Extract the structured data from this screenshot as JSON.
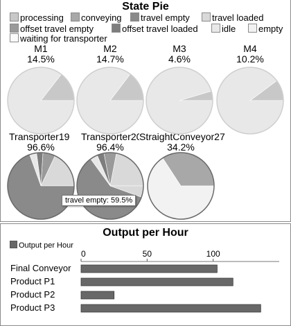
{
  "chart_data": [
    {
      "type": "pie",
      "title": "State Pie",
      "legend": [
        {
          "name": "processing",
          "color": "#c8c8c8"
        },
        {
          "name": "conveying",
          "color": "#a8a8a8"
        },
        {
          "name": "travel empty",
          "color": "#8a8a8a"
        },
        {
          "name": "travel loaded",
          "color": "#d9d9d9"
        },
        {
          "name": "offset travel empty",
          "color": "#9a9a9a"
        },
        {
          "name": "offset travel loaded",
          "color": "#7d7d7d"
        },
        {
          "name": "idle",
          "color": "#e8e8e8"
        },
        {
          "name": "empty",
          "color": "#f2f2f2"
        },
        {
          "name": "waiting for transporter",
          "color": "#fafafa"
        }
      ],
      "pies": [
        {
          "name": "M1",
          "label": "14.5%",
          "slices": [
            {
              "state": "processing",
              "value": 14.5
            },
            {
              "state": "idle",
              "value": 85.5
            }
          ]
        },
        {
          "name": "M2",
          "label": "14.7%",
          "slices": [
            {
              "state": "processing",
              "value": 14.7
            },
            {
              "state": "idle",
              "value": 85.3
            }
          ]
        },
        {
          "name": "M3",
          "label": "4.6%",
          "slices": [
            {
              "state": "processing",
              "value": 4.6
            },
            {
              "state": "idle",
              "value": 95.4
            }
          ]
        },
        {
          "name": "M4",
          "label": "10.2%",
          "slices": [
            {
              "state": "processing",
              "value": 10.2
            },
            {
              "state": "idle",
              "value": 89.8
            }
          ]
        },
        {
          "name": "Transporter19",
          "label": "96.6%",
          "slices": [
            {
              "state": "travel loaded",
              "value": 18.0
            },
            {
              "state": "offset travel empty",
              "value": 6.0
            },
            {
              "state": "offset travel loaded",
              "value": 3.1
            },
            {
              "state": "idle",
              "value": 3.4
            },
            {
              "state": "travel empty",
              "value": 69.5
            }
          ]
        },
        {
          "name": "Transporter20",
          "label": "96.4%",
          "slices": [
            {
              "state": "travel loaded",
              "value": 22.0
            },
            {
              "state": "offset travel empty",
              "value": 6.0
            },
            {
              "state": "offset travel loaded",
              "value": 3.4
            },
            {
              "state": "idle",
              "value": 3.6
            },
            {
              "state": "travel empty",
              "value": 59.5
            },
            {
              "state": "travel loaded",
              "value": 5.5
            }
          ]
        },
        {
          "name": "StraightConveyor27",
          "label": "34.2%",
          "slices": [
            {
              "state": "conveying",
              "value": 34.2
            },
            {
              "state": "empty",
              "value": 65.8
            }
          ]
        }
      ],
      "tooltip": "travel empty: 59.5%"
    },
    {
      "type": "bar",
      "orientation": "horizontal",
      "title": "Output per Hour",
      "series": [
        {
          "name": "Output per Hour",
          "color": "#686868"
        }
      ],
      "categories": [
        "Final Conveyor",
        "Product P1",
        "Product P2",
        "Product P3"
      ],
      "values": [
        103,
        115,
        25,
        136
      ],
      "xlim": [
        0,
        150
      ],
      "xticks": [
        0,
        50,
        100
      ]
    }
  ]
}
